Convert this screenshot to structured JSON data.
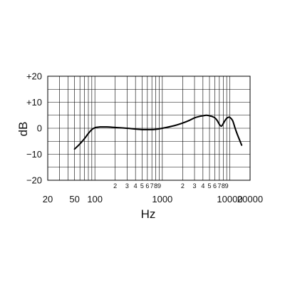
{
  "chart_data": {
    "type": "line",
    "xlabel": "Hz",
    "ylabel": "dB",
    "xscale": "log",
    "xlim": [
      20,
      20000
    ],
    "ylim": [
      -20,
      20
    ],
    "grid": true,
    "x_tick_labels_major": [
      "20",
      "50",
      "100",
      "1000",
      "10000",
      "20000"
    ],
    "x_tick_values_major": [
      20,
      50,
      100,
      1000,
      10000,
      20000
    ],
    "x_tick_labels_minor": [
      "2",
      "3",
      "4",
      "5",
      "6",
      "7",
      "8",
      "9",
      "2",
      "3",
      "4",
      "5",
      "6",
      "7",
      "8",
      "9"
    ],
    "x_tick_values_minor": [
      200,
      300,
      400,
      500,
      600,
      700,
      800,
      900,
      2000,
      3000,
      4000,
      5000,
      6000,
      7000,
      8000,
      9000
    ],
    "y_tick_labels": [
      "+20",
      "+10",
      "0",
      "−10",
      "−20"
    ],
    "y_tick_values": [
      20,
      10,
      0,
      -10,
      -20
    ],
    "series": [
      {
        "x": [
          50,
          60,
          70,
          80,
          90,
          100,
          110,
          120,
          150,
          200,
          300,
          400,
          500,
          700,
          800,
          1000,
          1500,
          2000,
          2500,
          3000,
          3500,
          4000,
          4500,
          5000,
          5500,
          6000,
          6500,
          7000,
          7500,
          8000,
          8500,
          9000,
          9500,
          10000,
          11000,
          12000,
          13000,
          15000
        ],
        "y": [
          -8,
          -6,
          -4,
          -2,
          -0.5,
          0.2,
          0.4,
          0.5,
          0.5,
          0.3,
          0,
          -0.3,
          -0.5,
          -0.5,
          -0.4,
          0,
          1,
          2,
          3,
          4,
          4.5,
          4.8,
          5,
          4.8,
          4.5,
          4,
          3,
          1.5,
          0.8,
          1.8,
          3,
          3.8,
          4.2,
          4.2,
          3,
          0,
          -2.5,
          -6.5
        ]
      }
    ],
    "colors": {
      "grid": "#000000",
      "line": "#000000"
    }
  }
}
